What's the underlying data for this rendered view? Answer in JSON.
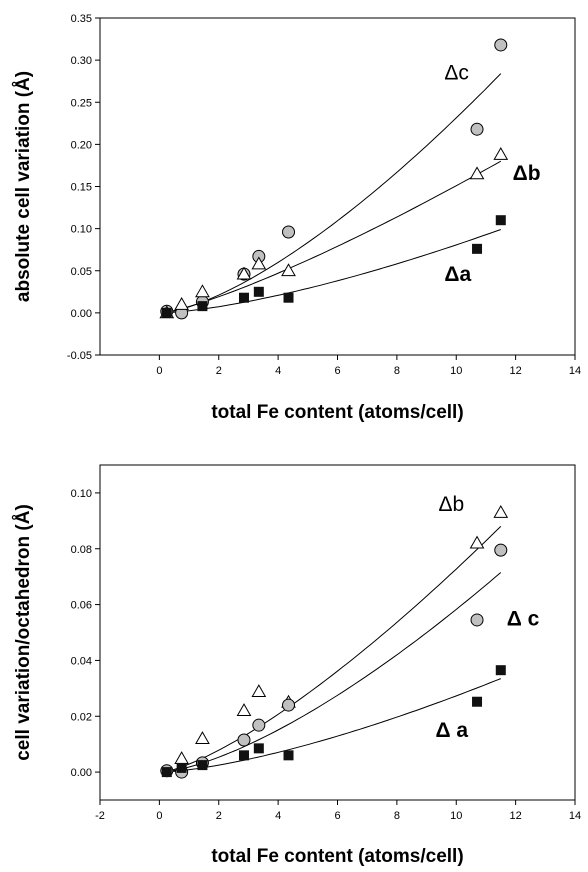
{
  "chart_data": [
    {
      "type": "scatter",
      "xlabel": "total Fe content (atoms/cell)",
      "ylabel": "absolute cell variation (Å)",
      "xlim": [
        -2,
        14
      ],
      "ylim": [
        -0.05,
        0.35
      ],
      "xticks": [
        "0",
        "2",
        "4",
        "6",
        "8",
        "10",
        "12",
        "14"
      ],
      "xtick_values": [
        0,
        2,
        4,
        6,
        8,
        10,
        12,
        14
      ],
      "yticks": [
        "-0.05",
        "0.00",
        "0.05",
        "0.10",
        "0.15",
        "0.20",
        "0.25",
        "0.30",
        "0.35"
      ],
      "ytick_values": [
        -0.05,
        0,
        0.05,
        0.1,
        0.15,
        0.2,
        0.25,
        0.3,
        0.35
      ],
      "grid": false,
      "annotations": [
        {
          "text": "Δc",
          "x": 9.6,
          "y": 0.277,
          "bold": false
        },
        {
          "text": "Δb",
          "x": 11.9,
          "y": 0.158,
          "bold": true
        },
        {
          "text": "Δa",
          "x": 9.6,
          "y": 0.038,
          "bold": true
        }
      ],
      "series": [
        {
          "marker": "circle",
          "x": [
            0.25,
            0.75,
            1.45,
            2.85,
            3.35,
            4.35,
            10.7,
            11.5
          ],
          "y": [
            0.002,
            0.0,
            0.013,
            0.046,
            0.067,
            0.096,
            0.218,
            0.318
          ],
          "fit": {
            "x0": 0.1,
            "x1": 11.5,
            "y0": 0.0,
            "y1": 0.284,
            "exp": 1.45
          }
        },
        {
          "marker": "triangle",
          "x": [
            0.25,
            0.75,
            1.45,
            2.85,
            3.35,
            4.35,
            10.7,
            11.5
          ],
          "y": [
            0.0,
            0.01,
            0.025,
            0.046,
            0.058,
            0.05,
            0.165,
            0.188
          ],
          "fit": {
            "x0": 0.1,
            "x1": 11.5,
            "y0": 0.0,
            "y1": 0.18,
            "exp": 1.25
          }
        },
        {
          "marker": "square",
          "x": [
            0.25,
            1.45,
            2.85,
            3.35,
            4.35,
            10.7,
            11.5
          ],
          "y": [
            0.0,
            0.008,
            0.018,
            0.025,
            0.018,
            0.076,
            0.11
          ],
          "fit": {
            "x0": 0.1,
            "x1": 11.5,
            "y0": 0.0,
            "y1": 0.099,
            "exp": 1.45
          }
        }
      ]
    },
    {
      "type": "scatter",
      "xlabel": "total Fe content (atoms/cell)",
      "ylabel": "cell variation/octahedron (Å)",
      "xlim": [
        -2,
        14
      ],
      "ylim": [
        -0.01,
        0.11
      ],
      "xticks": [
        "-2",
        "0",
        "2",
        "4",
        "6",
        "8",
        "10",
        "12",
        "14"
      ],
      "xtick_values": [
        -2,
        0,
        2,
        4,
        6,
        8,
        10,
        12,
        14
      ],
      "yticks": [
        "0.00",
        "0.02",
        "0.04",
        "0.06",
        "0.08",
        "0.10"
      ],
      "ytick_values": [
        0,
        0.02,
        0.04,
        0.06,
        0.08,
        0.1
      ],
      "grid": false,
      "annotations": [
        {
          "text": "Δb",
          "x": 9.4,
          "y": 0.0935,
          "bold": false
        },
        {
          "text": "Δ c",
          "x": 11.7,
          "y": 0.0525,
          "bold": true
        },
        {
          "text": "Δ a",
          "x": 9.3,
          "y": 0.0125,
          "bold": true
        }
      ],
      "series": [
        {
          "marker": "triangle",
          "x": [
            0.75,
            1.45,
            2.85,
            3.35,
            4.35,
            10.7,
            11.5
          ],
          "y": [
            0.0048,
            0.012,
            0.022,
            0.0288,
            0.025,
            0.082,
            0.093
          ],
          "fit": {
            "x0": 0.1,
            "x1": 11.5,
            "y0": 0.0,
            "y1": 0.088,
            "exp": 1.35
          }
        },
        {
          "marker": "circle",
          "x": [
            0.25,
            0.75,
            1.45,
            2.85,
            3.35,
            4.35,
            10.7,
            11.5
          ],
          "y": [
            0.0005,
            0.0,
            0.0033,
            0.0115,
            0.0168,
            0.024,
            0.0545,
            0.0795
          ],
          "fit": {
            "x0": 0.1,
            "x1": 11.5,
            "y0": 0.0,
            "y1": 0.0715,
            "exp": 1.45
          }
        },
        {
          "marker": "square",
          "x": [
            0.25,
            0.75,
            1.45,
            2.85,
            3.35,
            4.35,
            10.7,
            11.5
          ],
          "y": [
            0.0,
            0.0015,
            0.0025,
            0.006,
            0.0085,
            0.006,
            0.0252,
            0.0365
          ],
          "fit": {
            "x0": 0.1,
            "x1": 11.5,
            "y0": 0.0,
            "y1": 0.0335,
            "exp": 1.45
          }
        }
      ]
    }
  ],
  "colors": {
    "circle_fill": "#c0c0c0",
    "square_fill": "#111111",
    "triangle_fill": "#ffffff",
    "axis": "#000000"
  }
}
